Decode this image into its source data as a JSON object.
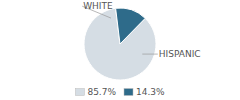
{
  "chart_data": {
    "type": "pie",
    "categories": [
      "WHITE",
      "HISPANIC"
    ],
    "values": [
      85.7,
      14.3
    ],
    "value_labels": [
      "85.7%",
      "14.3%"
    ],
    "colors": [
      "#d5dde4",
      "#2e6b8a"
    ],
    "legend": "bottom"
  }
}
